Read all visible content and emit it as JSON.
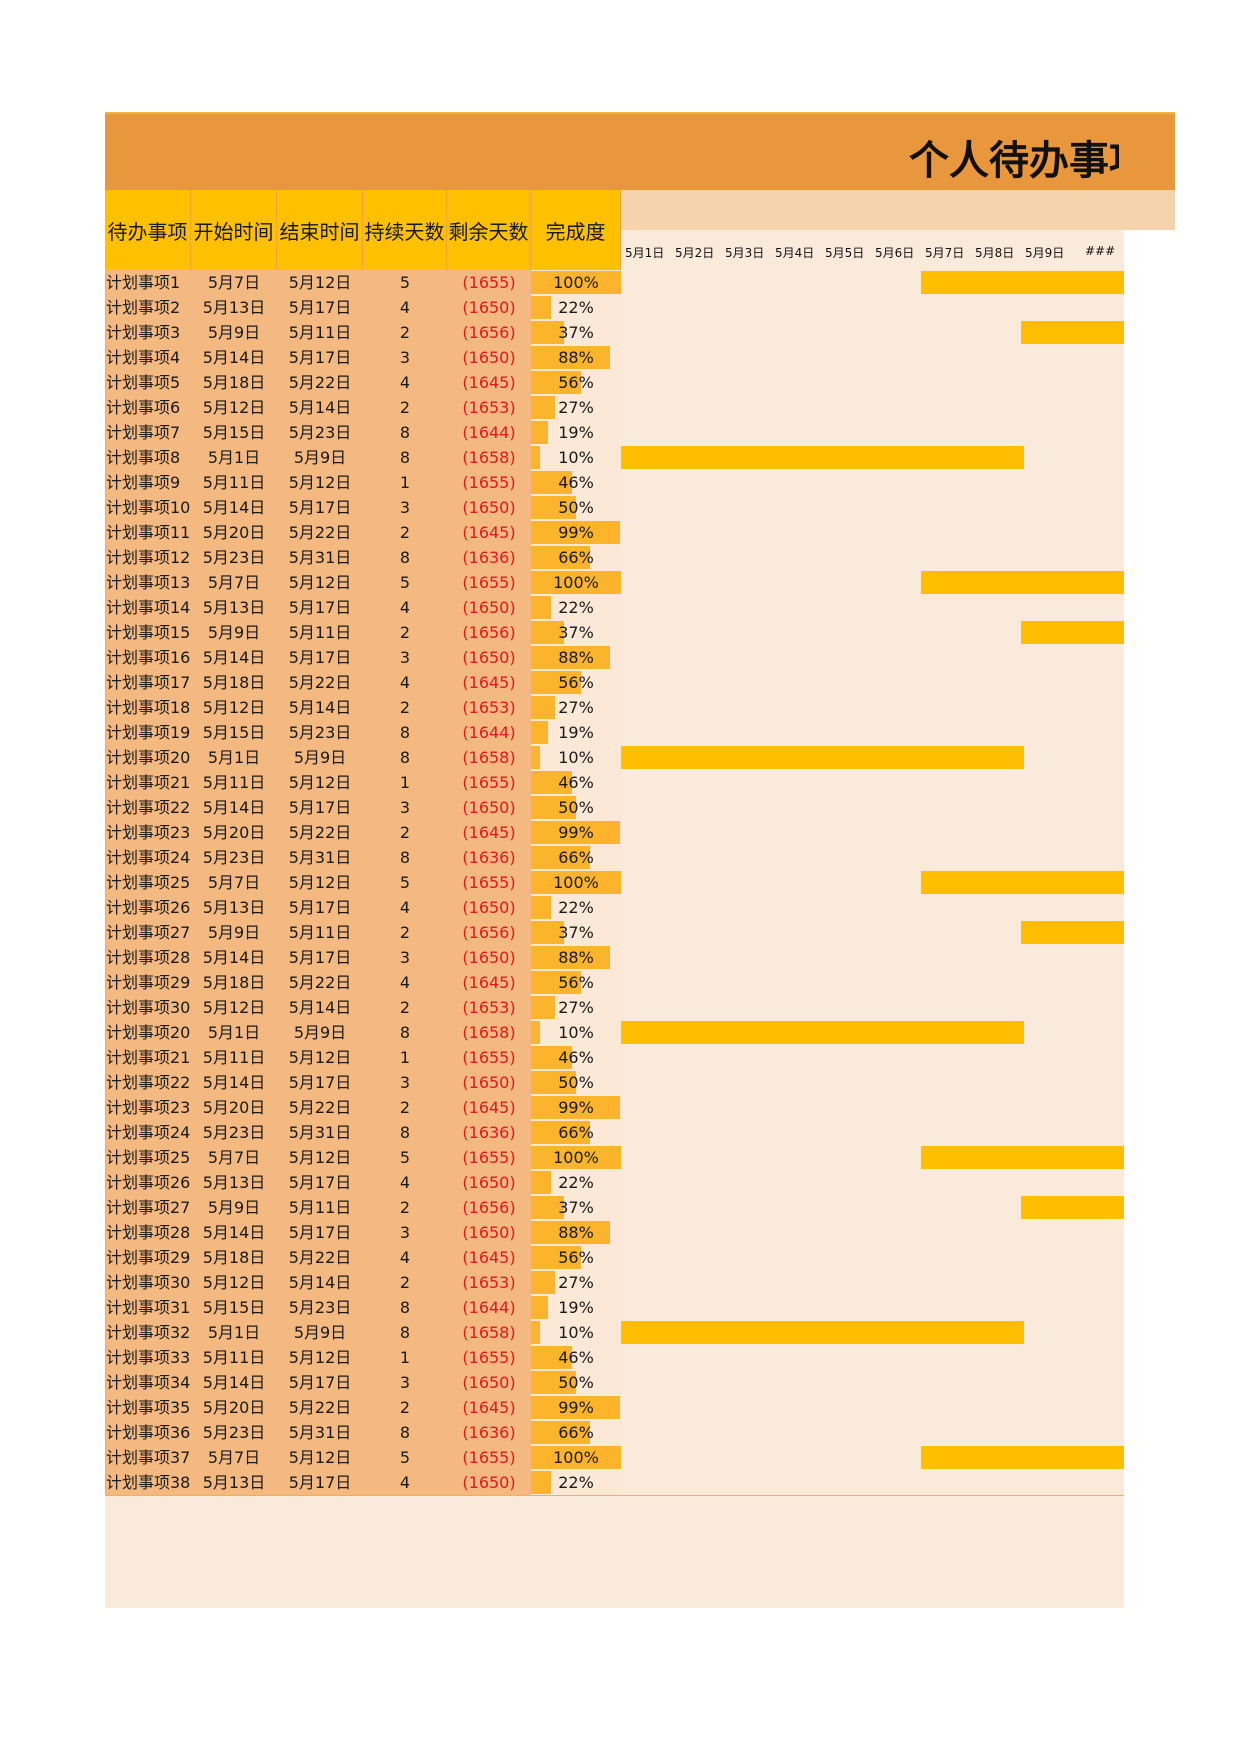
{
  "title": "个人待办事项",
  "headers": {
    "task": "待办事项",
    "start": "开始时间",
    "end": "结束时间",
    "duration": "持续天数",
    "remaining": "剩余天数",
    "progress": "完成度"
  },
  "date_labels": [
    "5月1日",
    "5月2日",
    "5月3日",
    "5月4日",
    "5月5日",
    "5月6日",
    "5月7日",
    "5月8日",
    "5月9日",
    "###"
  ],
  "colors": {
    "title_bar": "#e9973d",
    "header_cell": "#ffc000",
    "gantt_bar": "#ffbf00",
    "negative": "#e8141e"
  },
  "rows": [
    {
      "name": "计划事项1",
      "start": "5月7日",
      "end": "5月12日",
      "dur": "5",
      "rem": "(1655)",
      "pct": "100%",
      "p": 1.0,
      "s": 7
    },
    {
      "name": "计划事项2",
      "start": "5月13日",
      "end": "5月17日",
      "dur": "4",
      "rem": "(1650)",
      "pct": "22%",
      "p": 0.22,
      "s": 13
    },
    {
      "name": "计划事项3",
      "start": "5月9日",
      "end": "5月11日",
      "dur": "2",
      "rem": "(1656)",
      "pct": "37%",
      "p": 0.37,
      "s": 9
    },
    {
      "name": "计划事项4",
      "start": "5月14日",
      "end": "5月17日",
      "dur": "3",
      "rem": "(1650)",
      "pct": "88%",
      "p": 0.88,
      "s": 14
    },
    {
      "name": "计划事项5",
      "start": "5月18日",
      "end": "5月22日",
      "dur": "4",
      "rem": "(1645)",
      "pct": "56%",
      "p": 0.56,
      "s": 18
    },
    {
      "name": "计划事项6",
      "start": "5月12日",
      "end": "5月14日",
      "dur": "2",
      "rem": "(1653)",
      "pct": "27%",
      "p": 0.27,
      "s": 12
    },
    {
      "name": "计划事项7",
      "start": "5月15日",
      "end": "5月23日",
      "dur": "8",
      "rem": "(1644)",
      "pct": "19%",
      "p": 0.19,
      "s": 15
    },
    {
      "name": "计划事项8",
      "start": "5月1日",
      "end": "5月9日",
      "dur": "8",
      "rem": "(1658)",
      "pct": "10%",
      "p": 0.1,
      "s": 1
    },
    {
      "name": "计划事项9",
      "start": "5月11日",
      "end": "5月12日",
      "dur": "1",
      "rem": "(1655)",
      "pct": "46%",
      "p": 0.46,
      "s": 11
    },
    {
      "name": "计划事项10",
      "start": "5月14日",
      "end": "5月17日",
      "dur": "3",
      "rem": "(1650)",
      "pct": "50%",
      "p": 0.5,
      "s": 14
    },
    {
      "name": "计划事项11",
      "start": "5月20日",
      "end": "5月22日",
      "dur": "2",
      "rem": "(1645)",
      "pct": "99%",
      "p": 0.99,
      "s": 20
    },
    {
      "name": "计划事项12",
      "start": "5月23日",
      "end": "5月31日",
      "dur": "8",
      "rem": "(1636)",
      "pct": "66%",
      "p": 0.66,
      "s": 23
    },
    {
      "name": "计划事项13",
      "start": "5月7日",
      "end": "5月12日",
      "dur": "5",
      "rem": "(1655)",
      "pct": "100%",
      "p": 1.0,
      "s": 7
    },
    {
      "name": "计划事项14",
      "start": "5月13日",
      "end": "5月17日",
      "dur": "4",
      "rem": "(1650)",
      "pct": "22%",
      "p": 0.22,
      "s": 13
    },
    {
      "name": "计划事项15",
      "start": "5月9日",
      "end": "5月11日",
      "dur": "2",
      "rem": "(1656)",
      "pct": "37%",
      "p": 0.37,
      "s": 9
    },
    {
      "name": "计划事项16",
      "start": "5月14日",
      "end": "5月17日",
      "dur": "3",
      "rem": "(1650)",
      "pct": "88%",
      "p": 0.88,
      "s": 14
    },
    {
      "name": "计划事项17",
      "start": "5月18日",
      "end": "5月22日",
      "dur": "4",
      "rem": "(1645)",
      "pct": "56%",
      "p": 0.56,
      "s": 18
    },
    {
      "name": "计划事项18",
      "start": "5月12日",
      "end": "5月14日",
      "dur": "2",
      "rem": "(1653)",
      "pct": "27%",
      "p": 0.27,
      "s": 12
    },
    {
      "name": "计划事项19",
      "start": "5月15日",
      "end": "5月23日",
      "dur": "8",
      "rem": "(1644)",
      "pct": "19%",
      "p": 0.19,
      "s": 15
    },
    {
      "name": "计划事项20",
      "start": "5月1日",
      "end": "5月9日",
      "dur": "8",
      "rem": "(1658)",
      "pct": "10%",
      "p": 0.1,
      "s": 1
    },
    {
      "name": "计划事项21",
      "start": "5月11日",
      "end": "5月12日",
      "dur": "1",
      "rem": "(1655)",
      "pct": "46%",
      "p": 0.46,
      "s": 11
    },
    {
      "name": "计划事项22",
      "start": "5月14日",
      "end": "5月17日",
      "dur": "3",
      "rem": "(1650)",
      "pct": "50%",
      "p": 0.5,
      "s": 14
    },
    {
      "name": "计划事项23",
      "start": "5月20日",
      "end": "5月22日",
      "dur": "2",
      "rem": "(1645)",
      "pct": "99%",
      "p": 0.99,
      "s": 20
    },
    {
      "name": "计划事项24",
      "start": "5月23日",
      "end": "5月31日",
      "dur": "8",
      "rem": "(1636)",
      "pct": "66%",
      "p": 0.66,
      "s": 23
    },
    {
      "name": "计划事项25",
      "start": "5月7日",
      "end": "5月12日",
      "dur": "5",
      "rem": "(1655)",
      "pct": "100%",
      "p": 1.0,
      "s": 7
    },
    {
      "name": "计划事项26",
      "start": "5月13日",
      "end": "5月17日",
      "dur": "4",
      "rem": "(1650)",
      "pct": "22%",
      "p": 0.22,
      "s": 13
    },
    {
      "name": "计划事项27",
      "start": "5月9日",
      "end": "5月11日",
      "dur": "2",
      "rem": "(1656)",
      "pct": "37%",
      "p": 0.37,
      "s": 9
    },
    {
      "name": "计划事项28",
      "start": "5月14日",
      "end": "5月17日",
      "dur": "3",
      "rem": "(1650)",
      "pct": "88%",
      "p": 0.88,
      "s": 14
    },
    {
      "name": "计划事项29",
      "start": "5月18日",
      "end": "5月22日",
      "dur": "4",
      "rem": "(1645)",
      "pct": "56%",
      "p": 0.56,
      "s": 18
    },
    {
      "name": "计划事项30",
      "start": "5月12日",
      "end": "5月14日",
      "dur": "2",
      "rem": "(1653)",
      "pct": "27%",
      "p": 0.27,
      "s": 12
    },
    {
      "name": "计划事项20",
      "start": "5月1日",
      "end": "5月9日",
      "dur": "8",
      "rem": "(1658)",
      "pct": "10%",
      "p": 0.1,
      "s": 1
    },
    {
      "name": "计划事项21",
      "start": "5月11日",
      "end": "5月12日",
      "dur": "1",
      "rem": "(1655)",
      "pct": "46%",
      "p": 0.46,
      "s": 11
    },
    {
      "name": "计划事项22",
      "start": "5月14日",
      "end": "5月17日",
      "dur": "3",
      "rem": "(1650)",
      "pct": "50%",
      "p": 0.5,
      "s": 14
    },
    {
      "name": "计划事项23",
      "start": "5月20日",
      "end": "5月22日",
      "dur": "2",
      "rem": "(1645)",
      "pct": "99%",
      "p": 0.99,
      "s": 20
    },
    {
      "name": "计划事项24",
      "start": "5月23日",
      "end": "5月31日",
      "dur": "8",
      "rem": "(1636)",
      "pct": "66%",
      "p": 0.66,
      "s": 23
    },
    {
      "name": "计划事项25",
      "start": "5月7日",
      "end": "5月12日",
      "dur": "5",
      "rem": "(1655)",
      "pct": "100%",
      "p": 1.0,
      "s": 7
    },
    {
      "name": "计划事项26",
      "start": "5月13日",
      "end": "5月17日",
      "dur": "4",
      "rem": "(1650)",
      "pct": "22%",
      "p": 0.22,
      "s": 13
    },
    {
      "name": "计划事项27",
      "start": "5月9日",
      "end": "5月11日",
      "dur": "2",
      "rem": "(1656)",
      "pct": "37%",
      "p": 0.37,
      "s": 9
    },
    {
      "name": "计划事项28",
      "start": "5月14日",
      "end": "5月17日",
      "dur": "3",
      "rem": "(1650)",
      "pct": "88%",
      "p": 0.88,
      "s": 14
    },
    {
      "name": "计划事项29",
      "start": "5月18日",
      "end": "5月22日",
      "dur": "4",
      "rem": "(1645)",
      "pct": "56%",
      "p": 0.56,
      "s": 18
    },
    {
      "name": "计划事项30",
      "start": "5月12日",
      "end": "5月14日",
      "dur": "2",
      "rem": "(1653)",
      "pct": "27%",
      "p": 0.27,
      "s": 12
    },
    {
      "name": "计划事项31",
      "start": "5月15日",
      "end": "5月23日",
      "dur": "8",
      "rem": "(1644)",
      "pct": "19%",
      "p": 0.19,
      "s": 15
    },
    {
      "name": "计划事项32",
      "start": "5月1日",
      "end": "5月9日",
      "dur": "8",
      "rem": "(1658)",
      "pct": "10%",
      "p": 0.1,
      "s": 1
    },
    {
      "name": "计划事项33",
      "start": "5月11日",
      "end": "5月12日",
      "dur": "1",
      "rem": "(1655)",
      "pct": "46%",
      "p": 0.46,
      "s": 11
    },
    {
      "name": "计划事项34",
      "start": "5月14日",
      "end": "5月17日",
      "dur": "3",
      "rem": "(1650)",
      "pct": "50%",
      "p": 0.5,
      "s": 14
    },
    {
      "name": "计划事项35",
      "start": "5月20日",
      "end": "5月22日",
      "dur": "2",
      "rem": "(1645)",
      "pct": "99%",
      "p": 0.99,
      "s": 20
    },
    {
      "name": "计划事项36",
      "start": "5月23日",
      "end": "5月31日",
      "dur": "8",
      "rem": "(1636)",
      "pct": "66%",
      "p": 0.66,
      "s": 23
    },
    {
      "name": "计划事项37",
      "start": "5月7日",
      "end": "5月12日",
      "dur": "5",
      "rem": "(1655)",
      "pct": "100%",
      "p": 1.0,
      "s": 7
    },
    {
      "name": "计划事项38",
      "start": "5月13日",
      "end": "5月17日",
      "dur": "4",
      "rem": "(1650)",
      "pct": "22%",
      "p": 0.22,
      "s": 13
    }
  ]
}
